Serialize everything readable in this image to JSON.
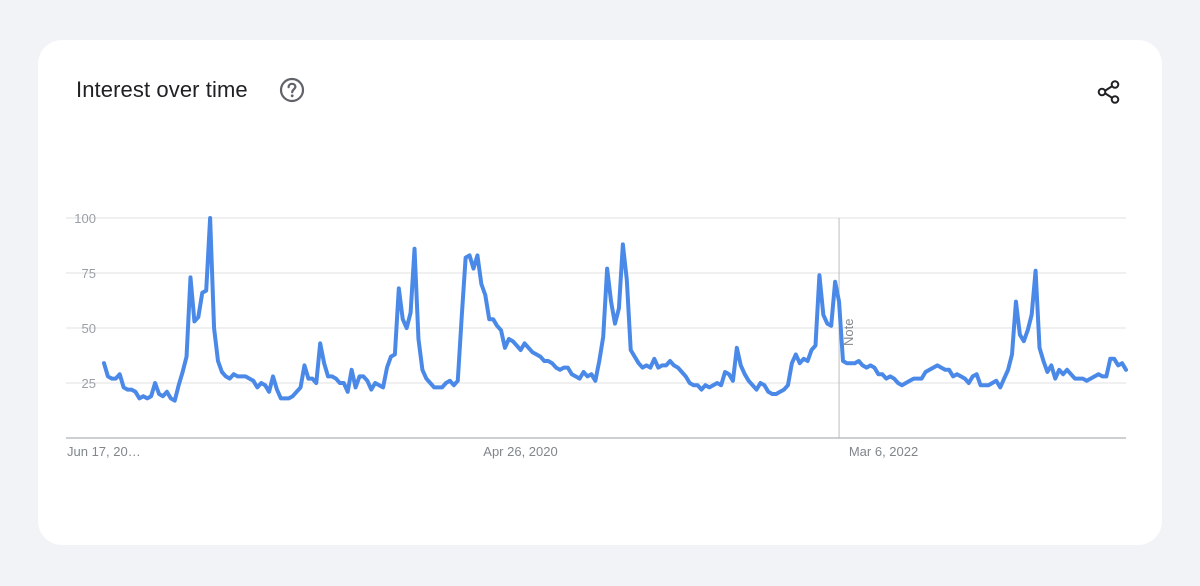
{
  "header": {
    "title": "Interest over time",
    "help_icon": "help-circle-icon",
    "share_icon": "share-icon"
  },
  "colors": {
    "line": "#4a89e8",
    "grid": "#e0e0e0",
    "background": "#f1f3f6",
    "card": "#ffffff"
  },
  "chart_data": {
    "type": "line",
    "title": "Interest over time",
    "xlabel": "",
    "ylabel": "",
    "ylim": [
      0,
      100
    ],
    "grid": true,
    "y_ticks": [
      "100",
      "75",
      "50",
      "25"
    ],
    "y_tick_values": [
      100,
      75,
      50,
      25
    ],
    "x_ticks": [
      {
        "label": "Jun 17, 20…",
        "index": 0
      },
      {
        "label": "Apr 26, 2020",
        "index": 97
      },
      {
        "label": "Mar 6, 2022",
        "index": 190
      }
    ],
    "annotation": {
      "label": "Note",
      "index": 187
    },
    "series": [
      {
        "values": [
          34,
          28,
          27,
          27,
          29,
          23,
          22,
          22,
          21,
          18,
          19,
          18,
          19,
          25,
          20,
          19,
          21,
          18,
          17,
          24,
          30,
          37,
          73,
          53,
          55,
          66,
          67,
          100,
          50,
          35,
          30,
          28,
          27,
          29,
          28,
          28,
          28,
          27,
          26,
          23,
          25,
          24,
          21,
          28,
          22,
          18,
          18,
          18,
          19,
          21,
          23,
          33,
          27,
          27,
          25,
          43,
          34,
          28,
          28,
          27,
          25,
          25,
          21,
          31,
          23,
          28,
          28,
          26,
          22,
          25,
          24,
          23,
          32,
          37,
          38,
          68,
          54,
          50,
          57,
          86,
          45,
          31,
          27,
          25,
          23,
          23,
          23,
          25,
          26,
          24,
          26,
          55,
          82,
          83,
          77,
          83,
          70,
          65,
          54,
          54,
          51,
          49,
          41,
          45,
          44,
          42,
          40,
          43,
          41,
          39,
          38,
          37,
          35,
          35,
          34,
          32,
          31,
          32,
          32,
          29,
          28,
          27,
          30,
          28,
          29,
          26,
          35,
          46,
          77,
          62,
          52,
          59,
          88,
          72,
          40,
          37,
          34,
          32,
          33,
          32,
          36,
          32,
          33,
          33,
          35,
          33,
          32,
          30,
          28,
          25,
          24,
          24,
          22,
          24,
          23,
          24,
          25,
          24,
          30,
          29,
          26,
          41,
          33,
          29,
          26,
          24,
          22,
          25,
          24,
          21,
          20,
          20,
          21,
          22,
          24,
          34,
          38,
          34,
          36,
          35,
          40,
          42,
          74,
          56,
          52,
          51,
          71,
          62,
          35,
          34,
          34,
          34,
          35,
          33,
          32,
          33,
          32,
          29,
          29,
          27,
          28,
          27,
          25,
          24,
          25,
          26,
          27,
          27,
          27,
          30,
          31,
          32,
          33,
          32,
          31,
          31,
          28,
          29,
          28,
          27,
          25,
          28,
          29,
          24,
          24,
          24,
          25,
          26,
          23,
          27,
          31,
          38,
          62,
          47,
          44,
          49,
          56,
          76,
          41,
          35,
          30,
          33,
          27,
          31,
          29,
          31,
          29,
          27,
          27,
          27,
          26,
          27,
          28,
          29,
          28,
          28,
          36,
          36,
          33,
          34,
          31
        ]
      }
    ]
  }
}
